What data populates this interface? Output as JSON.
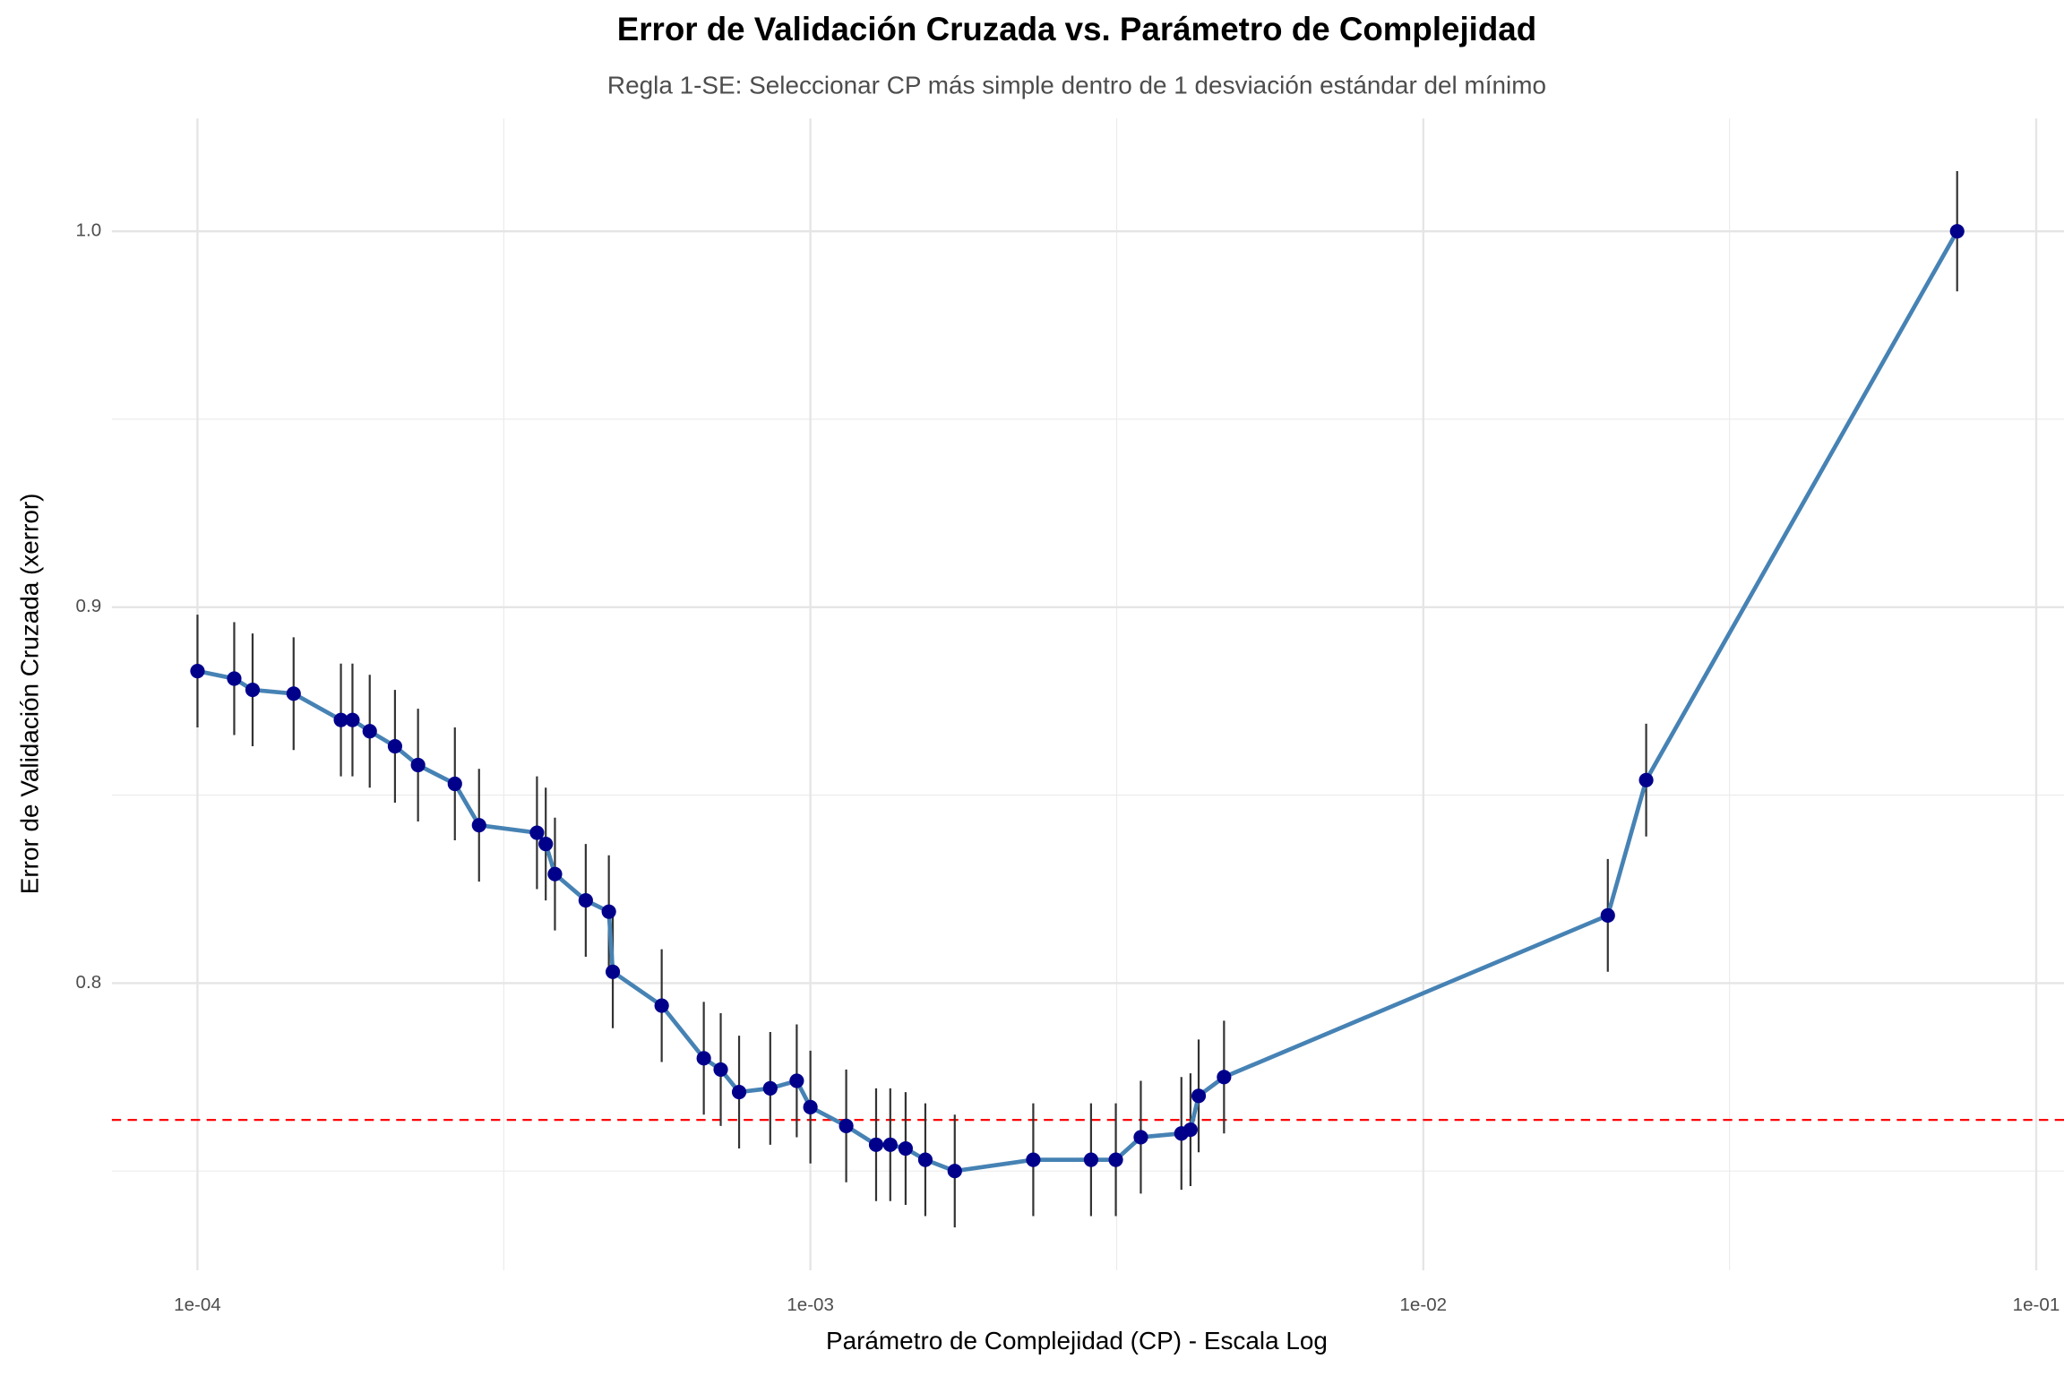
{
  "chart_data": {
    "type": "errorline",
    "title": "Error de Validación Cruzada vs. Parámetro de Complejidad",
    "subtitle": "Regla 1-SE: Seleccionar CP más simple dentro de 1 desviación estándar del mínimo",
    "xlabel": "Parámetro de Complejidad (CP) - Escala Log",
    "ylabel": "Error de Validación Cruzada (xerror)",
    "x": [
      0.0001,
      0.0001148,
      0.000123,
      0.0001435,
      0.0001714,
      0.000179,
      0.000191,
      0.00021,
      0.000229,
      0.000263,
      0.000288,
      0.000358,
      0.00037,
      0.000383,
      0.00043,
      0.000469,
      0.000476,
      0.000572,
      0.00067,
      0.000714,
      0.000765,
      0.00086,
      0.00095,
      0.001,
      0.001144,
      0.00128,
      0.00135,
      0.00143,
      0.00154,
      0.00172,
      0.00231,
      0.00287,
      0.00315,
      0.00346,
      0.00403,
      0.00417,
      0.0043,
      0.00473,
      0.02,
      0.0231,
      0.0743
    ],
    "values": [
      0.883,
      0.881,
      0.878,
      0.877,
      0.87,
      0.87,
      0.867,
      0.863,
      0.858,
      0.853,
      0.842,
      0.84,
      0.837,
      0.829,
      0.822,
      0.819,
      0.803,
      0.794,
      0.78,
      0.777,
      0.771,
      0.772,
      0.774,
      0.767,
      0.762,
      0.757,
      0.757,
      0.756,
      0.753,
      0.75,
      0.753,
      0.753,
      0.753,
      0.759,
      0.76,
      0.761,
      0.77,
      0.775,
      0.818,
      0.854,
      1.0
    ],
    "errors": [
      0.015,
      0.015,
      0.015,
      0.015,
      0.015,
      0.015,
      0.015,
      0.015,
      0.015,
      0.015,
      0.015,
      0.015,
      0.015,
      0.015,
      0.015,
      0.015,
      0.015,
      0.015,
      0.015,
      0.015,
      0.015,
      0.015,
      0.015,
      0.015,
      0.015,
      0.015,
      0.015,
      0.015,
      0.015,
      0.015,
      0.015,
      0.015,
      0.015,
      0.015,
      0.015,
      0.015,
      0.015,
      0.015,
      0.015,
      0.015,
      0.016
    ],
    "line_color": "#4682b4",
    "point_color": "#00008b",
    "error_color": "#333333",
    "hline": 0.7636,
    "hline_color": "#ff0000",
    "xlog": true,
    "xlim": [
      7.25e-05,
      0.111
    ],
    "ylim": [
      0.7236,
      1.03
    ],
    "xticks": [
      {
        "value": 0.0001,
        "label": "1e-04"
      },
      {
        "value": 0.001,
        "label": "1e-03"
      },
      {
        "value": 0.01,
        "label": "1e-02"
      },
      {
        "value": 0.1,
        "label": "1e-01"
      }
    ],
    "yticks": [
      0.8,
      0.9,
      {
        "value": 1,
        "label": "1.0"
      }
    ],
    "xminor": [
      0.000316,
      0.00316,
      0.0316
    ],
    "yminor": [
      0.75,
      0.85,
      0.95
    ],
    "grid": true
  }
}
